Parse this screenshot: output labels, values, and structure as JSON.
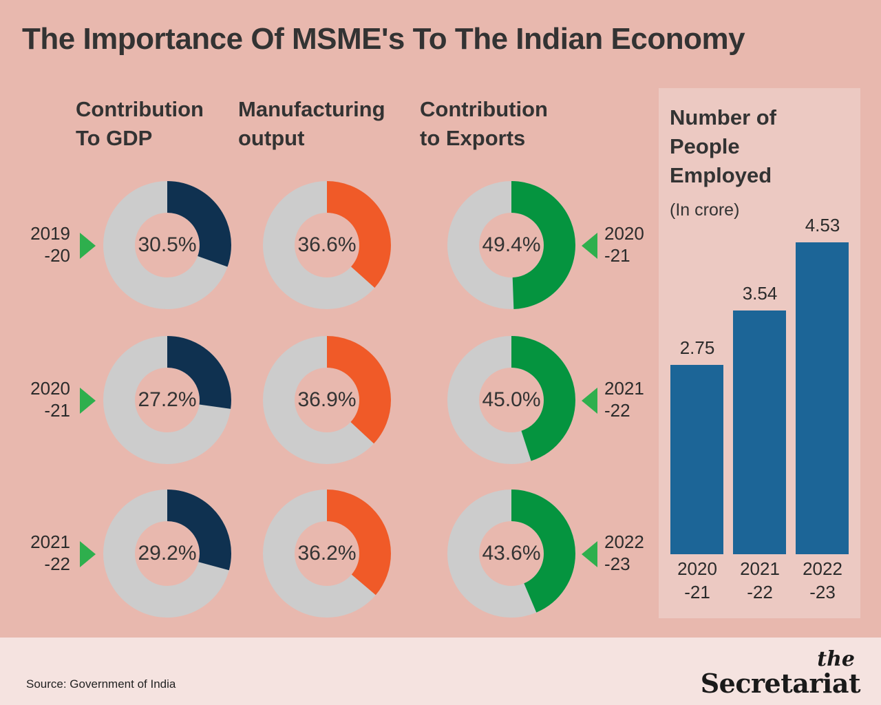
{
  "title": "The Importance Of MSME's To The Indian Economy",
  "colors": {
    "background": "#e8b8ae",
    "gdp": "#0f3150",
    "manufacturing": "#f05a28",
    "exports": "#05943f",
    "track": "#cccccc",
    "arrow": "#2eaf4d",
    "bar": "#1c6597",
    "panel": "#ecc9c2",
    "footer": "#f5e3e0"
  },
  "columns": {
    "gdp": "Contribution\nTo GDP",
    "manufacturing": "Manufacturing\noutput",
    "exports": "Contribution\nto Exports"
  },
  "left_years": [
    "2019\n-20",
    "2020\n-21",
    "2021\n-22"
  ],
  "right_years": [
    "2020\n-21",
    "2021\n-22",
    "2022\n-23"
  ],
  "panel": {
    "title": "Number of\nPeople\nEmployed",
    "subtitle": "(In crore)"
  },
  "source": "Source: Government of India",
  "logo": {
    "the": "the",
    "name": "Secretariat"
  },
  "chart_data": [
    {
      "type": "pie",
      "title": "Contribution To GDP",
      "categories": [
        "2019-20",
        "2020-21",
        "2021-22"
      ],
      "values": [
        30.5,
        27.2,
        29.2
      ],
      "labels": [
        "30.5%",
        "27.2%",
        "29.2%"
      ],
      "unit": "%"
    },
    {
      "type": "pie",
      "title": "Manufacturing output",
      "categories": [
        "2019-20",
        "2020-21",
        "2021-22"
      ],
      "values": [
        36.6,
        36.9,
        36.2
      ],
      "labels": [
        "36.6%",
        "36.9%",
        "36.2%"
      ],
      "unit": "%"
    },
    {
      "type": "pie",
      "title": "Contribution to Exports",
      "categories": [
        "2020-21",
        "2021-22",
        "2022-23"
      ],
      "values": [
        49.4,
        45.0,
        43.6
      ],
      "labels": [
        "49.4%",
        "45.0%",
        "43.6%"
      ],
      "unit": "%"
    },
    {
      "type": "bar",
      "title": "Number of People Employed",
      "ylabel": "(In crore)",
      "categories": [
        "2020\n-21",
        "2021\n-22",
        "2022\n-23"
      ],
      "values": [
        2.75,
        3.54,
        4.53
      ],
      "labels": [
        "2.75",
        "3.54",
        "4.53"
      ],
      "ylim": [
        0,
        4.53
      ]
    }
  ]
}
